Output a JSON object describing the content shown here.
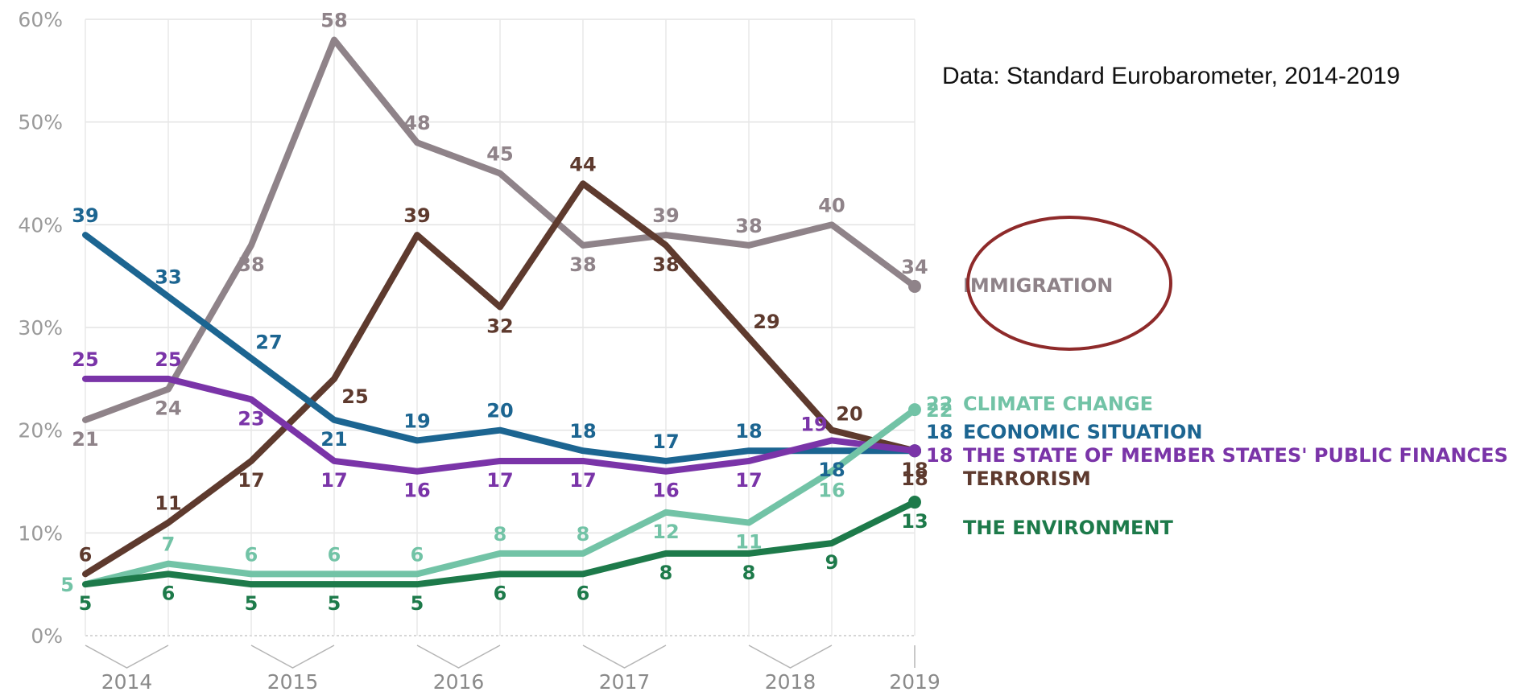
{
  "note": "Data: Standard Eurobarometer, 2014-2019",
  "chart_data": {
    "type": "line",
    "ylim": [
      0,
      60
    ],
    "y_ticks": [
      "0%",
      "10%",
      "20%",
      "30%",
      "40%",
      "50%",
      "60%"
    ],
    "x_points": 11,
    "x_labels": [
      "2014",
      "2015",
      "2016",
      "2017",
      "2018",
      "2019"
    ],
    "grid": true,
    "legend_placement": "right, at line ends",
    "highlight": {
      "series": "IMMIGRATION",
      "shape": "ellipse",
      "color": "#8e2a2a"
    },
    "series": [
      {
        "name": "IMMIGRATION",
        "color": "#8f8389",
        "width": 8,
        "values": [
          21,
          24,
          38,
          58,
          48,
          45,
          38,
          39,
          38,
          40,
          34
        ],
        "label_pos": [
          "below",
          "below",
          "below",
          "above",
          "above",
          "above",
          "below",
          "above",
          "above",
          "above",
          "above"
        ]
      },
      {
        "name": "TERRORISM",
        "color": "#5e3a2e",
        "width": 8,
        "values": [
          6,
          11,
          17,
          25,
          39,
          32,
          44,
          38,
          29,
          20,
          18
        ],
        "label_pos": [
          "above",
          "above",
          "below",
          "below-right",
          "above",
          "below",
          "above",
          "below",
          "above-right",
          "above-right",
          "below"
        ]
      },
      {
        "name": "ECONOMIC SITUATION",
        "color": "#1c6591",
        "width": 8,
        "values": [
          39,
          33,
          27,
          21,
          19,
          20,
          18,
          17,
          18,
          18,
          18
        ],
        "label_pos": [
          "above",
          "above",
          "above-right",
          "below",
          "above",
          "above",
          "above",
          "above",
          "above",
          "below",
          "none"
        ]
      },
      {
        "name": "THE STATE OF MEMBER STATES' PUBLIC FINANCES",
        "color": "#7a34a8",
        "width": 8,
        "values": [
          25,
          25,
          23,
          17,
          16,
          17,
          17,
          16,
          17,
          19,
          18
        ],
        "label_pos": [
          "above",
          "above",
          "below",
          "below",
          "below",
          "below",
          "below",
          "below",
          "below",
          "above-left",
          "none"
        ]
      },
      {
        "name": "CLIMATE CHANGE",
        "color": "#72c3a6",
        "width": 8,
        "values": [
          5,
          7,
          6,
          6,
          6,
          8,
          8,
          12,
          11,
          16,
          22
        ],
        "label_pos": [
          "left",
          "above",
          "above",
          "above",
          "above",
          "above",
          "above",
          "below",
          "below",
          "below",
          "right"
        ]
      },
      {
        "name": "THE ENVIRONMENT",
        "color": "#1d7a4a",
        "width": 8,
        "values": [
          5,
          6,
          5,
          5,
          5,
          6,
          6,
          8,
          8,
          9,
          13
        ],
        "label_pos": [
          "below",
          "below",
          "below",
          "below",
          "below",
          "below",
          "below",
          "below",
          "below",
          "below",
          "below"
        ]
      }
    ],
    "end_labels": [
      {
        "value": "22",
        "label": "CLIMATE CHANGE",
        "color": "#72c3a6"
      },
      {
        "value": "18",
        "label": "ECONOMIC SITUATION",
        "color": "#1c6591"
      },
      {
        "value": "18",
        "label": "THE STATE OF MEMBER STATES' PUBLIC FINANCES",
        "color": "#7a34a8"
      },
      {
        "value": "18",
        "label": "TERRORISM",
        "color": "#5e3a2e"
      },
      {
        "value": "",
        "label": "IMMIGRATION",
        "color": "#8f8389"
      },
      {
        "value": "",
        "label": "THE ENVIRONMENT",
        "color": "#1d7a4a"
      }
    ]
  }
}
